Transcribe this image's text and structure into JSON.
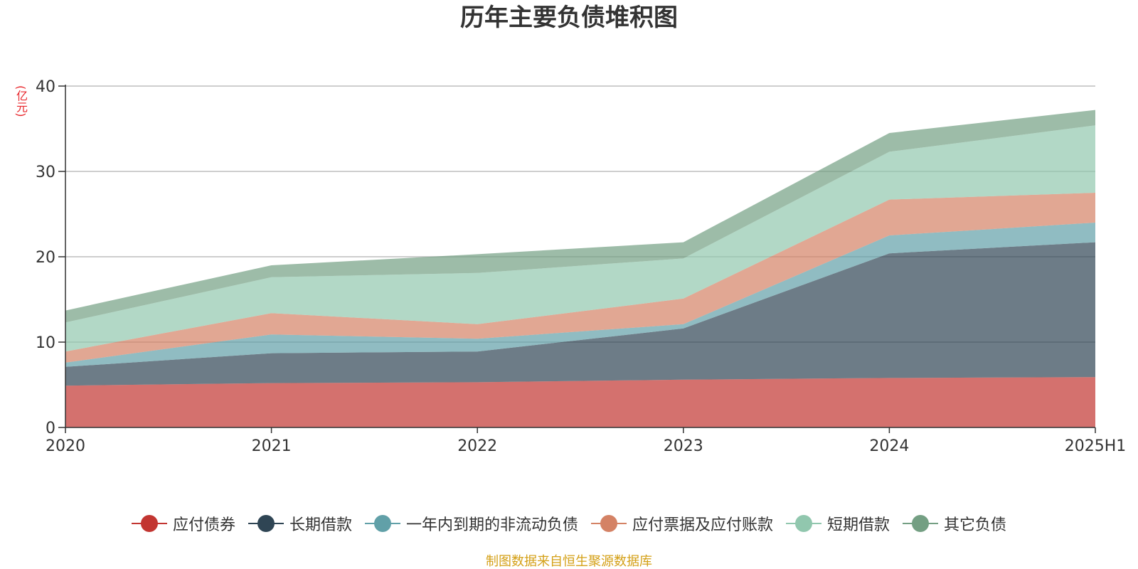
{
  "chart_data": {
    "type": "area",
    "stacked": true,
    "title": "历年主要负债堆积图",
    "unit": "(亿元)",
    "categories": [
      "2020",
      "2021",
      "2022",
      "2023",
      "2024",
      "2025H1"
    ],
    "ylim": [
      0,
      40
    ],
    "yticks": [
      "0",
      "10",
      "20",
      "30",
      "40"
    ],
    "grid": true,
    "legend_position": "bottom",
    "series": [
      {
        "name": "应付债券",
        "color": "#c23531",
        "values": [
          4.9,
          5.2,
          5.3,
          5.6,
          5.8,
          5.9
        ]
      },
      {
        "name": "长期借款",
        "color": "#2f4554",
        "values": [
          2.2,
          3.5,
          3.6,
          6.0,
          14.6,
          15.8
        ]
      },
      {
        "name": "一年内到期的非流动负债",
        "color": "#61a0a8",
        "values": [
          0.5,
          2.2,
          1.5,
          0.5,
          2.1,
          2.3
        ]
      },
      {
        "name": "应付票据及应付账款",
        "color": "#d48265",
        "values": [
          1.3,
          2.5,
          1.7,
          3.0,
          4.2,
          3.5
        ]
      },
      {
        "name": "短期借款",
        "color": "#91c7ae",
        "values": [
          3.4,
          4.2,
          6.0,
          4.7,
          5.6,
          7.9
        ]
      },
      {
        "name": "其它负债",
        "color": "#749f83",
        "values": [
          1.4,
          1.4,
          2.2,
          1.9,
          2.2,
          1.8
        ]
      }
    ]
  },
  "source_note": "制图数据来自恒生聚源数据库"
}
